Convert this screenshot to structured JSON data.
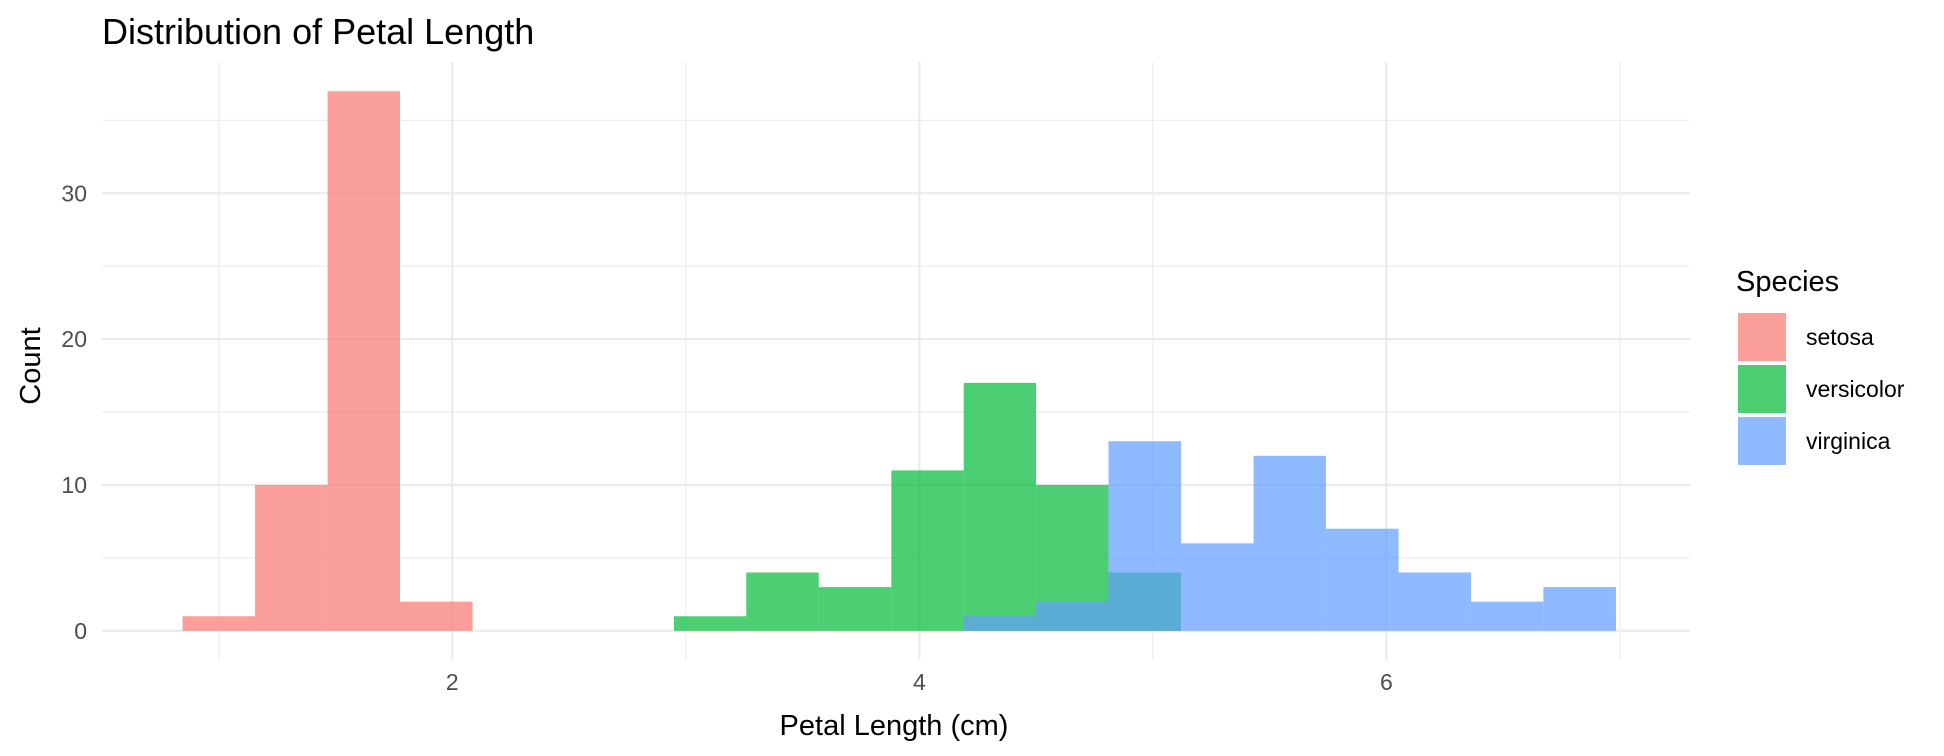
{
  "chart_data": {
    "type": "histogram",
    "title": "Distribution of Petal Length",
    "xlabel": "Petal Length (cm)",
    "ylabel": "Count",
    "xlim": [
      0.5,
      7.3
    ],
    "ylim": [
      -2,
      39
    ],
    "x_ticks": [
      2,
      4,
      6
    ],
    "x_minor_ticks": [
      1,
      3,
      5,
      7
    ],
    "y_ticks": [
      0,
      10,
      20,
      30
    ],
    "y_minor_ticks": [
      5,
      15,
      25,
      35
    ],
    "bin_width": 0.3105,
    "grid": true,
    "legend": {
      "title": "Species",
      "position": "right"
    },
    "series": [
      {
        "name": "setosa",
        "color": "#F8766D",
        "bins": [
          {
            "x0": 0.845,
            "x1": 1.155,
            "count": 1
          },
          {
            "x0": 1.155,
            "x1": 1.466,
            "count": 10
          },
          {
            "x0": 1.466,
            "x1": 1.776,
            "count": 37
          },
          {
            "x0": 1.776,
            "x1": 2.087,
            "count": 2
          }
        ]
      },
      {
        "name": "versicolor",
        "color": "#00BA38",
        "bins": [
          {
            "x0": 2.949,
            "x1": 3.259,
            "count": 1
          },
          {
            "x0": 3.259,
            "x1": 3.569,
            "count": 4
          },
          {
            "x0": 3.569,
            "x1": 3.88,
            "count": 3
          },
          {
            "x0": 3.88,
            "x1": 4.19,
            "count": 11
          },
          {
            "x0": 4.19,
            "x1": 4.5,
            "count": 17
          },
          {
            "x0": 4.5,
            "x1": 4.81,
            "count": 10
          },
          {
            "x0": 4.81,
            "x1": 5.121,
            "count": 4
          }
        ]
      },
      {
        "name": "virginica",
        "color": "#619CFF",
        "bins": [
          {
            "x0": 4.19,
            "x1": 4.5,
            "count": 1
          },
          {
            "x0": 4.5,
            "x1": 4.81,
            "count": 2
          },
          {
            "x0": 4.81,
            "x1": 5.121,
            "count": 13
          },
          {
            "x0": 5.121,
            "x1": 5.431,
            "count": 6
          },
          {
            "x0": 5.431,
            "x1": 5.741,
            "count": 12
          },
          {
            "x0": 5.741,
            "x1": 6.052,
            "count": 7
          },
          {
            "x0": 6.052,
            "x1": 6.362,
            "count": 4
          },
          {
            "x0": 6.362,
            "x1": 6.672,
            "count": 2
          },
          {
            "x0": 6.672,
            "x1": 6.983,
            "count": 3
          }
        ]
      }
    ]
  }
}
